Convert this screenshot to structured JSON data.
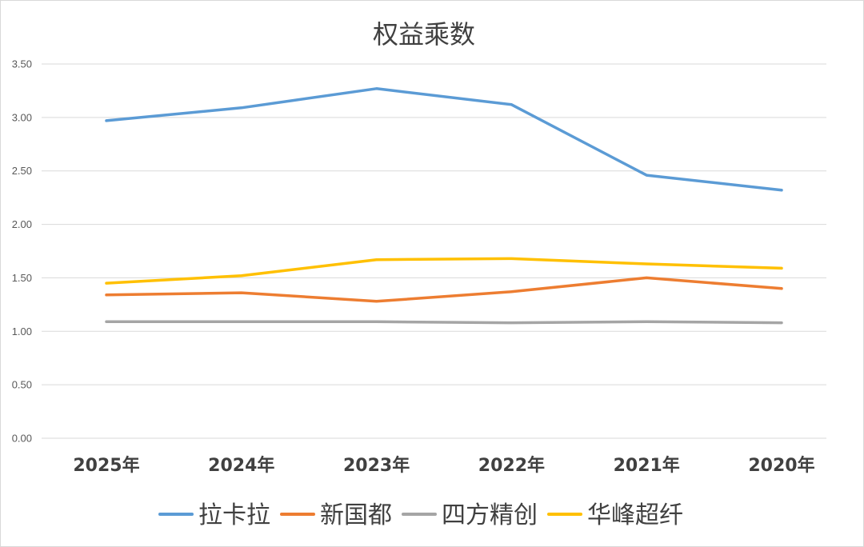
{
  "chart_data": {
    "type": "line",
    "title": "权益乘数",
    "xlabel": "",
    "ylabel": "",
    "categories": [
      "2025年",
      "2024年",
      "2023年",
      "2022年",
      "2021年",
      "2020年"
    ],
    "ylim": [
      0,
      3.5
    ],
    "y_ticks": [
      "0.00",
      "0.50",
      "1.00",
      "1.50",
      "2.00",
      "2.50",
      "3.00",
      "3.50"
    ],
    "y_tick_values": [
      0,
      0.5,
      1,
      1.5,
      2,
      2.5,
      3,
      3.5
    ],
    "grid": true,
    "legend_position": "bottom",
    "series": [
      {
        "name": "拉卡拉",
        "color": "#5b9bd5",
        "values": [
          2.97,
          3.09,
          3.27,
          3.12,
          2.46,
          2.32
        ]
      },
      {
        "name": "新国都",
        "color": "#ed7d31",
        "values": [
          1.34,
          1.36,
          1.28,
          1.37,
          1.5,
          1.4
        ]
      },
      {
        "name": "四方精创",
        "color": "#a5a5a5",
        "values": [
          1.09,
          1.09,
          1.09,
          1.08,
          1.09,
          1.08
        ]
      },
      {
        "name": "华峰超纤",
        "color": "#ffc000",
        "values": [
          1.45,
          1.52,
          1.67,
          1.68,
          1.63,
          1.59
        ]
      }
    ]
  }
}
